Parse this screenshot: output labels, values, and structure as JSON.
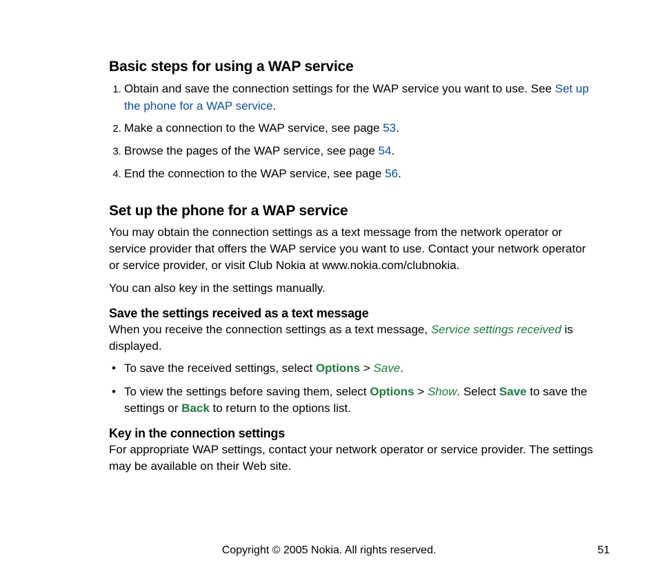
{
  "colors": {
    "link": "#0b4ea2",
    "green": "#1e7a3a",
    "text": "#000000",
    "background": "#ffffff"
  },
  "typography": {
    "body_fontsize": 17,
    "h1_fontsize": 21,
    "h2_fontsize": 21,
    "h3_fontsize": 18,
    "footer_fontsize": 16
  },
  "section1": {
    "heading": "Basic steps for using a WAP service",
    "item1_a": "Obtain and save the connection settings for the WAP service you want to use. See ",
    "item1_link": "Set up the phone for a WAP service",
    "item1_b": ".",
    "item2_a": "Make a connection to the WAP service, see page ",
    "item2_link": "53",
    "item2_b": ".",
    "item3_a": "Browse the pages of the WAP service, see page ",
    "item3_link": "54",
    "item3_b": ".",
    "item4_a": "End the connection to the WAP service, see page ",
    "item4_link": "56",
    "item4_b": "."
  },
  "section2": {
    "heading": "Set up the phone for a WAP service",
    "para1": "You may obtain the connection settings as a text message from the network operator or service provider that offers the WAP service you want to use. Contact your network operator or service provider, or visit Club Nokia at www.nokia.com/clubnokia.",
    "para2": "You can also key in the settings manually.",
    "sub1_heading": "Save the settings received as a text message",
    "sub1_para_a": "When you receive the connection settings as a text message, ",
    "sub1_para_green": "Service settings received",
    "sub1_para_b": " is displayed.",
    "bullet1_a": "To save the received settings, select ",
    "bullet1_g1": "Options",
    "bullet1_sep": " > ",
    "bullet1_g2": "Save",
    "bullet1_b": ".",
    "bullet2_a": "To view the settings before saving them, select ",
    "bullet2_g1": "Options",
    "bullet2_sep1": " > ",
    "bullet2_g2": "Show",
    "bullet2_mid": ". Select ",
    "bullet2_g3": "Save",
    "bullet2_mid2": " to save the settings or ",
    "bullet2_g4": "Back",
    "bullet2_end": " to return to the options list.",
    "sub2_heading": "Key in the connection settings",
    "sub2_para": "For appropriate WAP settings, contact your network operator or service provider. The settings may be available on their Web site."
  },
  "footer": {
    "copyright": "Copyright © 2005 Nokia. All rights reserved.",
    "page": "51"
  }
}
